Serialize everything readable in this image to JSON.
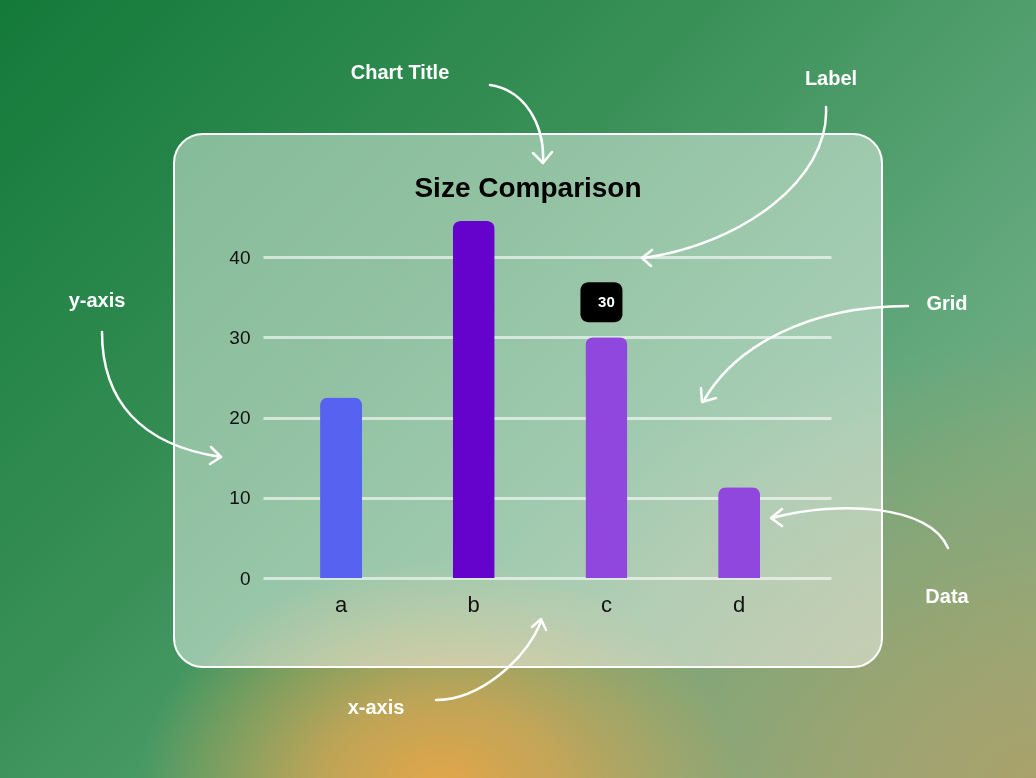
{
  "chart_data": {
    "type": "bar",
    "title": "Size Comparison",
    "categories": [
      "a",
      "b",
      "c",
      "d"
    ],
    "values": [
      22.5,
      44.5,
      30,
      11.3
    ],
    "colors": [
      "#5762f0",
      "#6502cc",
      "#8f47de",
      "#8f47de"
    ],
    "value_labels": [
      null,
      null,
      "30",
      null
    ],
    "ylim": [
      0,
      44.5
    ],
    "yticks": [
      0,
      10,
      20,
      30,
      40
    ],
    "grid": "y",
    "annotations": [
      "Chart Title",
      "Label",
      "Grid",
      "y-axis",
      "Data",
      "x-axis"
    ]
  }
}
